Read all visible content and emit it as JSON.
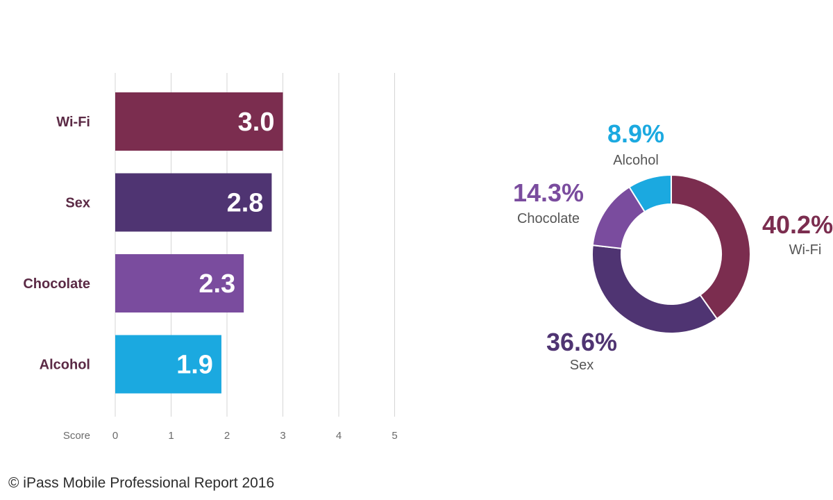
{
  "chart_data": [
    {
      "type": "bar",
      "orientation": "horizontal",
      "categories": [
        "Wi-Fi",
        "Sex",
        "Chocolate",
        "Alcohol"
      ],
      "values": [
        3.0,
        2.8,
        2.3,
        1.9
      ],
      "value_labels": [
        "3.0",
        "2.8",
        "2.3",
        "1.9"
      ],
      "colors": [
        "#7b2d4f",
        "#4f3472",
        "#7a4c9e",
        "#1ba9e0"
      ],
      "xlabel": "Score",
      "xlim": [
        0,
        5
      ],
      "xticks": [
        "0",
        "1",
        "2",
        "3",
        "4",
        "5"
      ],
      "grid": true
    },
    {
      "type": "pie",
      "style": "donut",
      "slices": [
        {
          "name": "Wi-Fi",
          "value": 40.2,
          "label": "40.2%",
          "color": "#7b2d4f"
        },
        {
          "name": "Sex",
          "value": 36.6,
          "label": "36.6%",
          "color": "#4f3472"
        },
        {
          "name": "Chocolate",
          "value": 14.3,
          "label": "14.3%",
          "color": "#7a4c9e"
        },
        {
          "name": "Alcohol",
          "value": 8.9,
          "label": "8.9%",
          "color": "#1ba9e0"
        }
      ]
    }
  ],
  "footer": {
    "copyright": "© iPass Mobile Professional Report 2016"
  }
}
